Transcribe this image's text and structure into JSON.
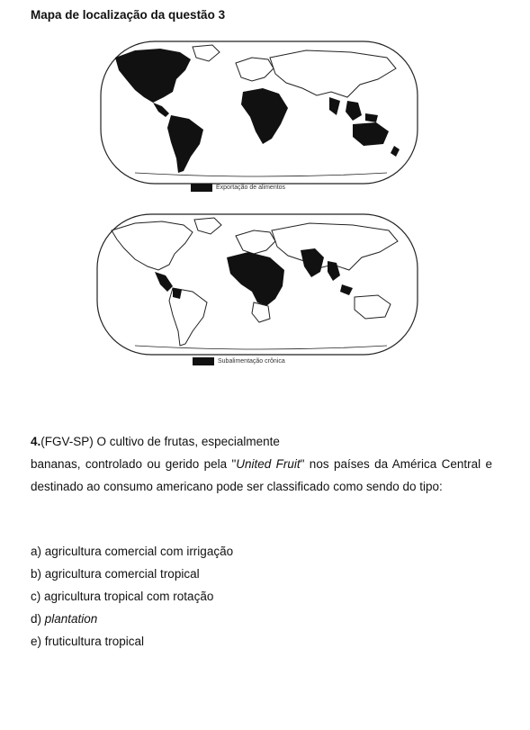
{
  "heading": "Mapa de localização da questão 3",
  "map1": {
    "legend": "Exportação de alimentos"
  },
  "map2": {
    "legend": "Subalimentação crônica"
  },
  "question": {
    "number": "4.",
    "source": "(FGV-SP) O cultivo de frutas, especialmente",
    "body_a": "bananas, controlado ou gerido pela \"",
    "term": "United Fruit",
    "body_b": "\" nos países da América Central e destinado ao consumo americano pode ser classificado como sendo do tipo:"
  },
  "options": [
    {
      "letter": "a) ",
      "text": "agricultura comercial com irrigação"
    },
    {
      "letter": "b) ",
      "text": "agricultura comercial tropical"
    },
    {
      "letter": "c) ",
      "text": "agricultura tropical com rotação"
    },
    {
      "letter": "d) ",
      "text": "plantation"
    },
    {
      "letter": "e) ",
      "text": "fruticultura tropical"
    }
  ]
}
